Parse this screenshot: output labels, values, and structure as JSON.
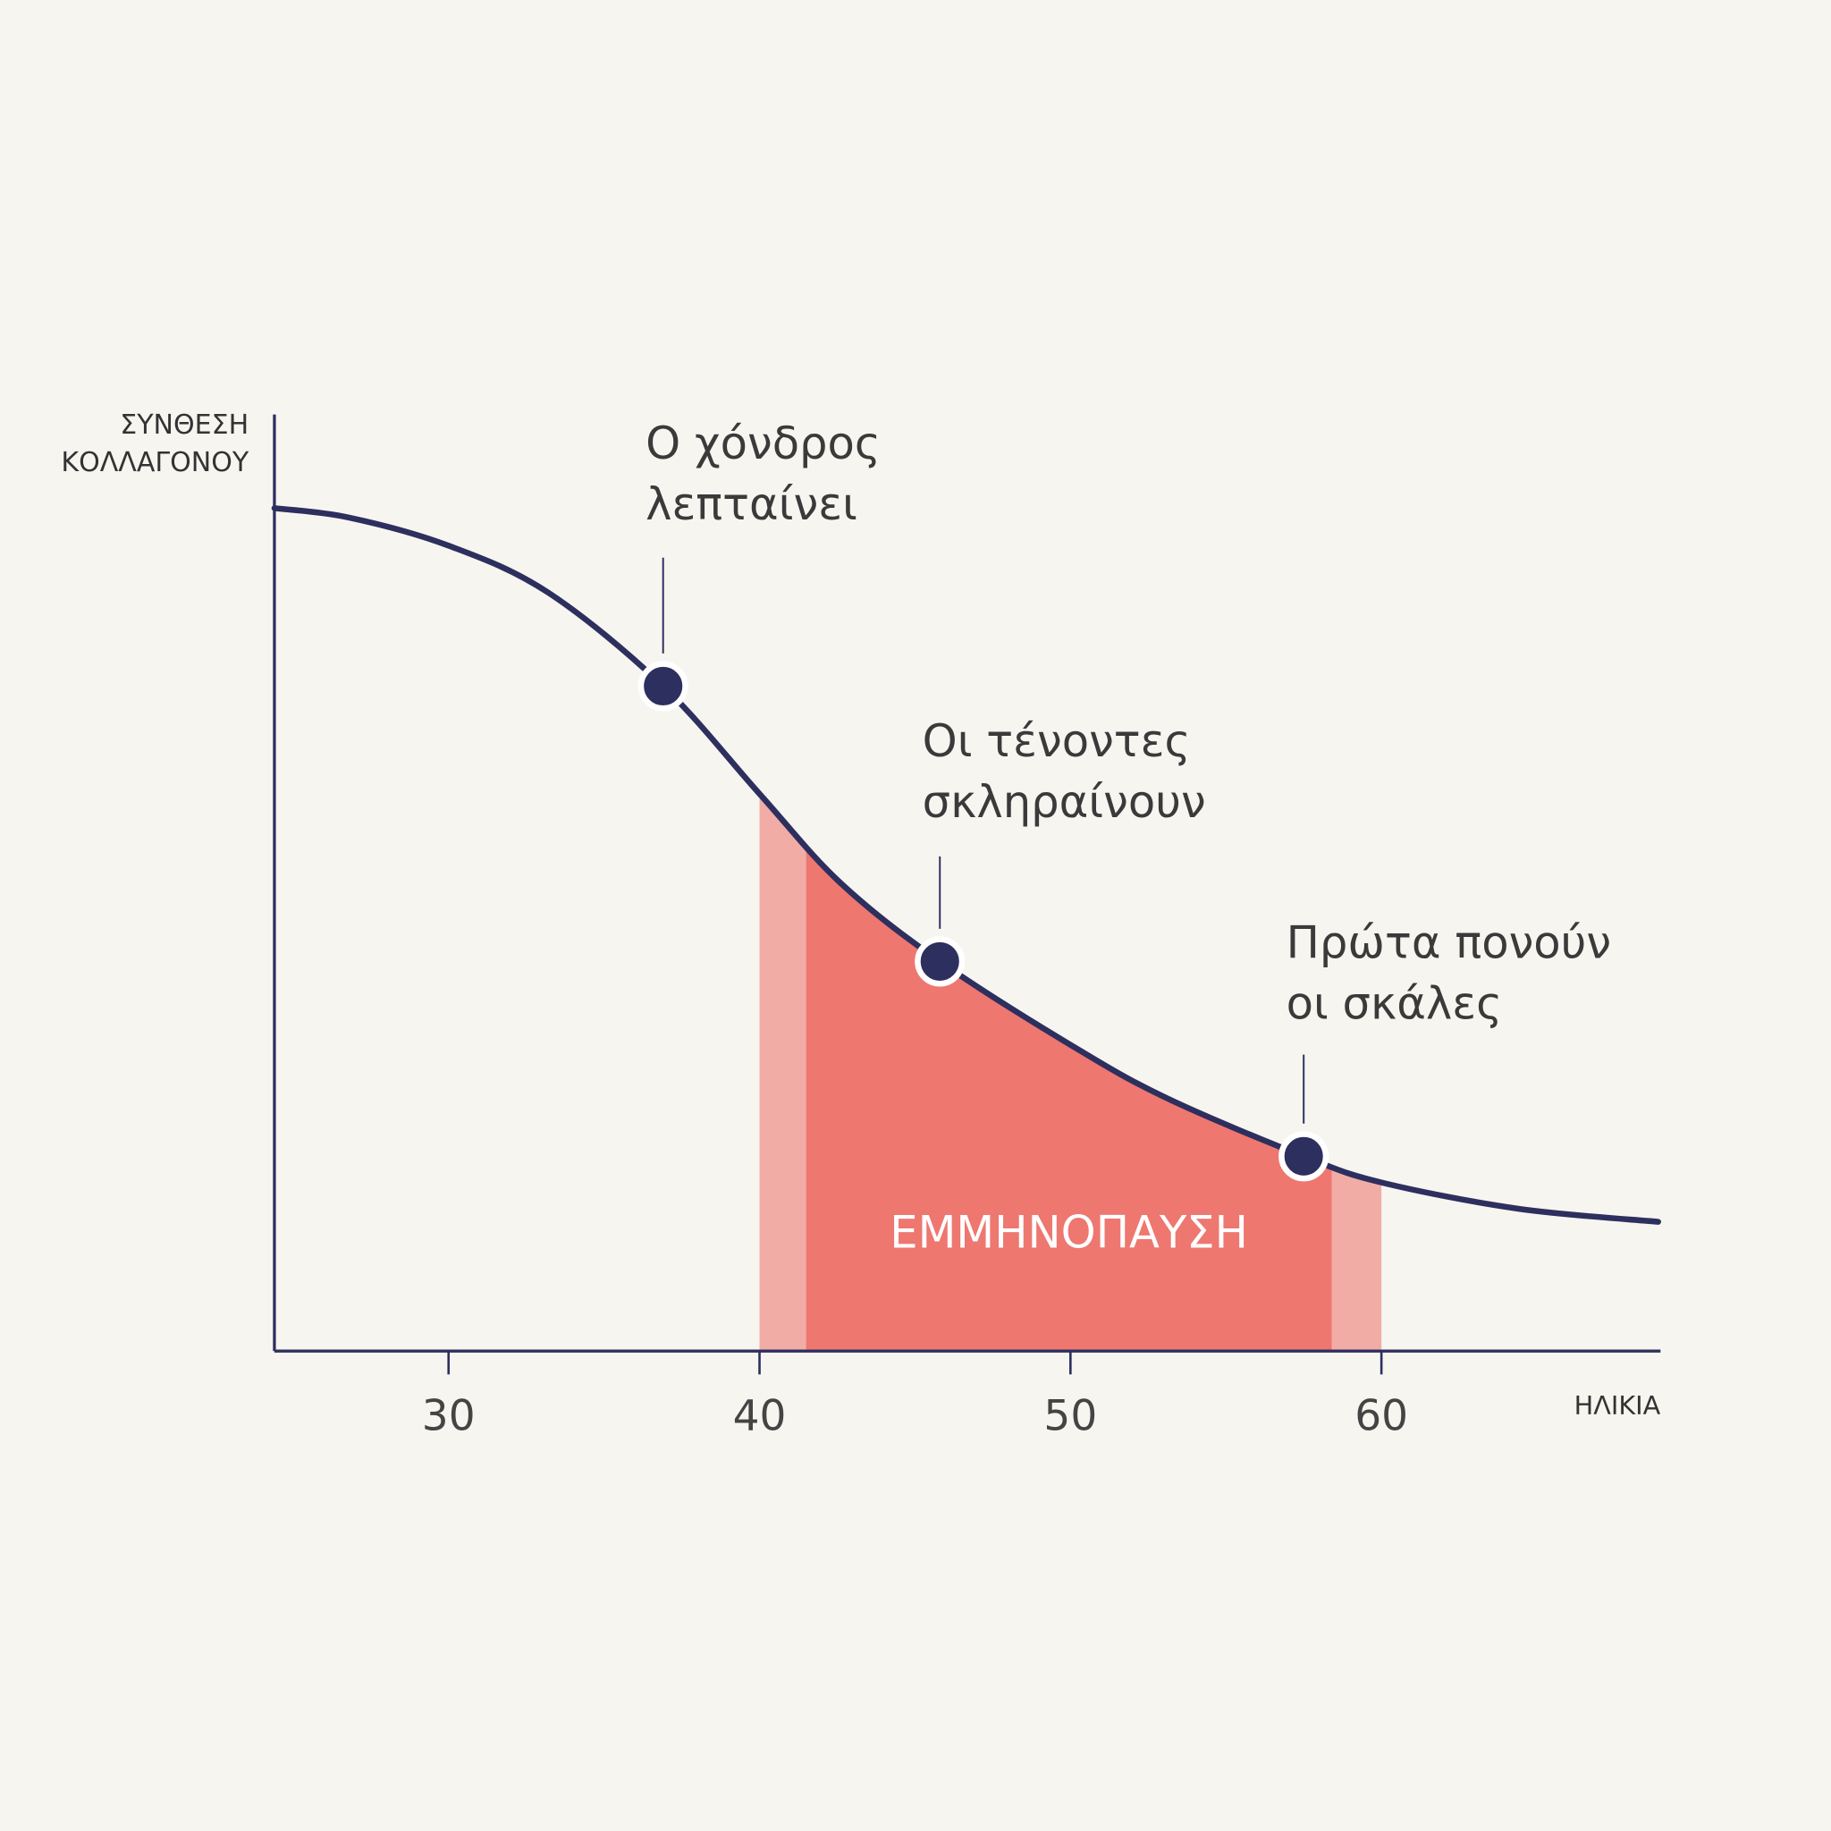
{
  "chart_data": {
    "type": "line",
    "y_label": [
      "ΣΥΝΘΕΣΗ",
      "ΚΟΛΛΑΓΟΝΟΥ"
    ],
    "x_label": "ΗΛΙΚΙΑ",
    "x": [
      24.4,
      26.8,
      30,
      33.2,
      36.9,
      40,
      42.6,
      45.8,
      50,
      53.1,
      57.5,
      60,
      64.4,
      68.9
    ],
    "series": [
      {
        "color": "#2d2f5e",
        "values": [
          90,
          89,
          86,
          81,
          71,
          59.5,
          50,
          41.6,
          32.7,
          27,
          20.8,
          18,
          15.2,
          13.8
        ]
      }
    ],
    "xlim": [
      24.4,
      68.9
    ],
    "ylim": [
      0,
      100
    ],
    "xticks": [
      30,
      40,
      50,
      60
    ],
    "shaded_range": [
      40,
      60
    ],
    "shaded_color": "#f2aca6",
    "core_range": [
      41.5,
      58.4
    ],
    "core_color": "#ee7770",
    "band_label": "ΕΜΜΗΝΟΠΑΥΣΗ",
    "annotations": [
      {
        "x": 36.9,
        "y": 71,
        "lines": [
          "Ο χόνδρος",
          "λεπταίνει"
        ]
      },
      {
        "x": 45.8,
        "y": 41.6,
        "lines": [
          "Οι τένοντες",
          "σκληραίνουν"
        ]
      },
      {
        "x": 57.5,
        "y": 20.8,
        "lines": [
          "Πρώτα πονούν",
          "οι σκάλες"
        ]
      }
    ]
  }
}
